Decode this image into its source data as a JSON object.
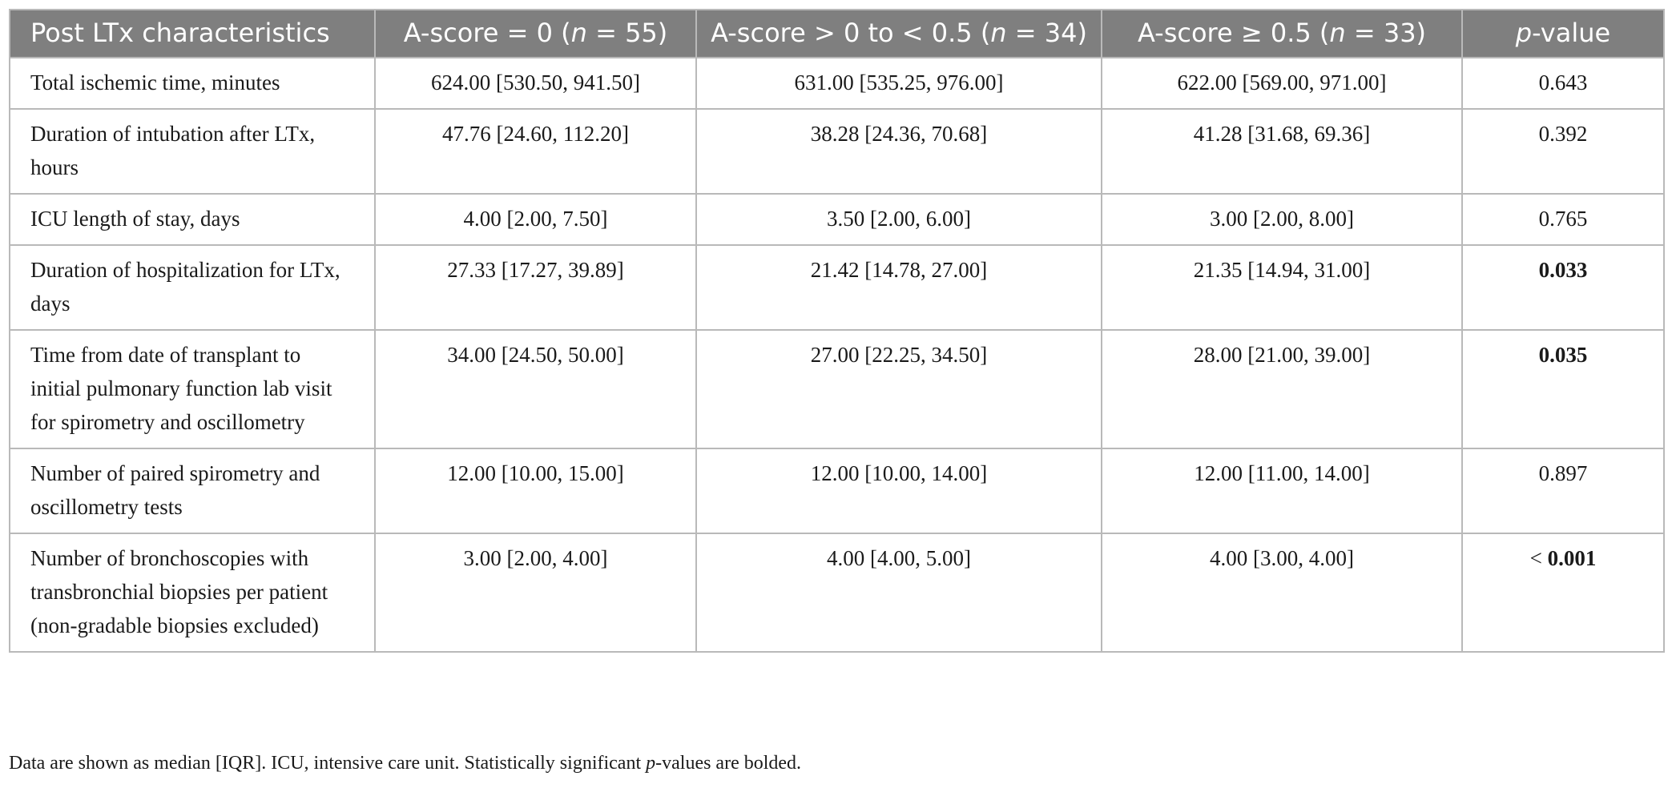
{
  "table": {
    "headers": [
      {
        "pre": "Post LTx characteristics",
        "n": "",
        "post": ""
      },
      {
        "pre": "A-score = 0 (",
        "n": "n",
        "post": " = 55)"
      },
      {
        "pre": "A-score > 0 to < 0.5 (",
        "n": "n",
        "post": " = 34)"
      },
      {
        "pre": "A-score ≥ 0.5 (",
        "n": "n",
        "post": " = 33)"
      },
      {
        "pre": "",
        "n": "p",
        "post": "-value"
      }
    ],
    "rows": [
      {
        "label": "Total ischemic time, minutes",
        "a0": "624.00 [530.50, 941.50]",
        "a1": "631.00 [535.25, 976.00]",
        "a2": "622.00 [569.00, 971.00]",
        "p_prefix": "",
        "p": "0.643",
        "p_bold": false
      },
      {
        "label": "Duration of intubation after LTx, hours",
        "a0": "47.76 [24.60, 112.20]",
        "a1": "38.28 [24.36, 70.68]",
        "a2": "41.28 [31.68, 69.36]",
        "p_prefix": "",
        "p": "0.392",
        "p_bold": false
      },
      {
        "label": "ICU length of stay, days",
        "a0": "4.00 [2.00, 7.50]",
        "a1": "3.50 [2.00, 6.00]",
        "a2": "3.00 [2.00, 8.00]",
        "p_prefix": "",
        "p": "0.765",
        "p_bold": false
      },
      {
        "label": "Duration of hospitalization for LTx, days",
        "a0": "27.33 [17.27, 39.89]",
        "a1": "21.42 [14.78, 27.00]",
        "a2": "21.35 [14.94, 31.00]",
        "p_prefix": "",
        "p": "0.033",
        "p_bold": true
      },
      {
        "label": "Time from date of transplant to initial pulmonary function lab visit for spirometry and oscillometry",
        "a0": "34.00 [24.50, 50.00]",
        "a1": "27.00 [22.25, 34.50]",
        "a2": "28.00 [21.00, 39.00]",
        "p_prefix": "",
        "p": "0.035",
        "p_bold": true
      },
      {
        "label": "Number of paired spirometry and oscillometry tests",
        "a0": "12.00 [10.00, 15.00]",
        "a1": "12.00 [10.00, 14.00]",
        "a2": "12.00 [11.00, 14.00]",
        "p_prefix": "",
        "p": "0.897",
        "p_bold": false
      },
      {
        "label": "Number of bronchoscopies with transbronchial biopsies per patient (non-gradable biopsies excluded)",
        "a0": "3.00 [2.00, 4.00]",
        "a1": "4.00 [4.00, 5.00]",
        "a2": "4.00 [3.00, 4.00]",
        "p_prefix": "< ",
        "p": "0.001",
        "p_bold": true
      }
    ]
  },
  "footnote": {
    "pre": "Data are shown as median [IQR]. ICU, intensive care unit. Statistically significant ",
    "italic": "p",
    "post": "-values are bolded."
  },
  "colors": {
    "header_bg": "#7f7f7f",
    "header_text": "#ffffff",
    "border": "#b9b9b9",
    "body_text": "#1a1a1a"
  }
}
